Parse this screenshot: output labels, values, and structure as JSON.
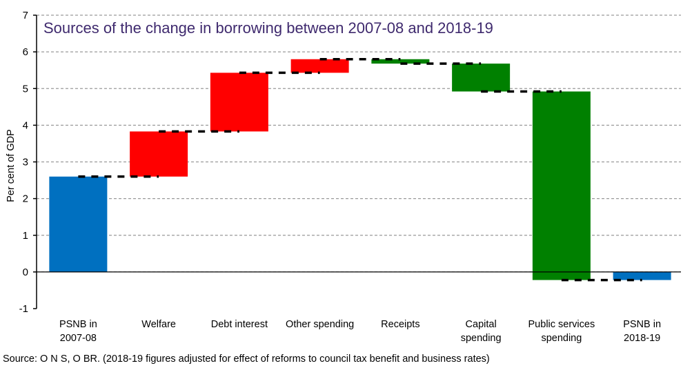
{
  "chart_data": {
    "type": "waterfall",
    "title": "Sources of the change in borrowing between 2007-08 and 2018-19",
    "ylabel": "Per cent of GDP",
    "xlabel": "",
    "ylim": [
      -1,
      7
    ],
    "yticks": [
      "-1",
      "0",
      "1",
      "2",
      "3",
      "4",
      "5",
      "6",
      "7"
    ],
    "grid": true,
    "categories": [
      [
        "PSNB in",
        "2007-08"
      ],
      [
        "Welfare"
      ],
      [
        "Debt interest"
      ],
      [
        "Other spending"
      ],
      [
        "Receipts"
      ],
      [
        "Capital",
        "spending"
      ],
      [
        "Public services",
        "spending"
      ],
      [
        "PSNB in",
        "2018-19"
      ]
    ],
    "bars": [
      {
        "kind": "total",
        "start": 0,
        "end": 2.6
      },
      {
        "kind": "increase",
        "start": 2.6,
        "end": 3.83
      },
      {
        "kind": "increase",
        "start": 3.83,
        "end": 5.43
      },
      {
        "kind": "increase",
        "start": 5.43,
        "end": 5.8
      },
      {
        "kind": "decrease",
        "start": 5.8,
        "end": 5.68
      },
      {
        "kind": "decrease",
        "start": 5.68,
        "end": 4.92
      },
      {
        "kind": "decrease",
        "start": 4.92,
        "end": -0.22
      },
      {
        "kind": "total",
        "start": 0,
        "end": -0.22
      }
    ],
    "colors": {
      "total": "#0070c0",
      "increase": "#ff0000",
      "decrease": "#008000"
    },
    "source": "Source: O N S, O BR. (2018-19 figures adjusted for effect of reforms to council tax benefit and business rates)"
  }
}
